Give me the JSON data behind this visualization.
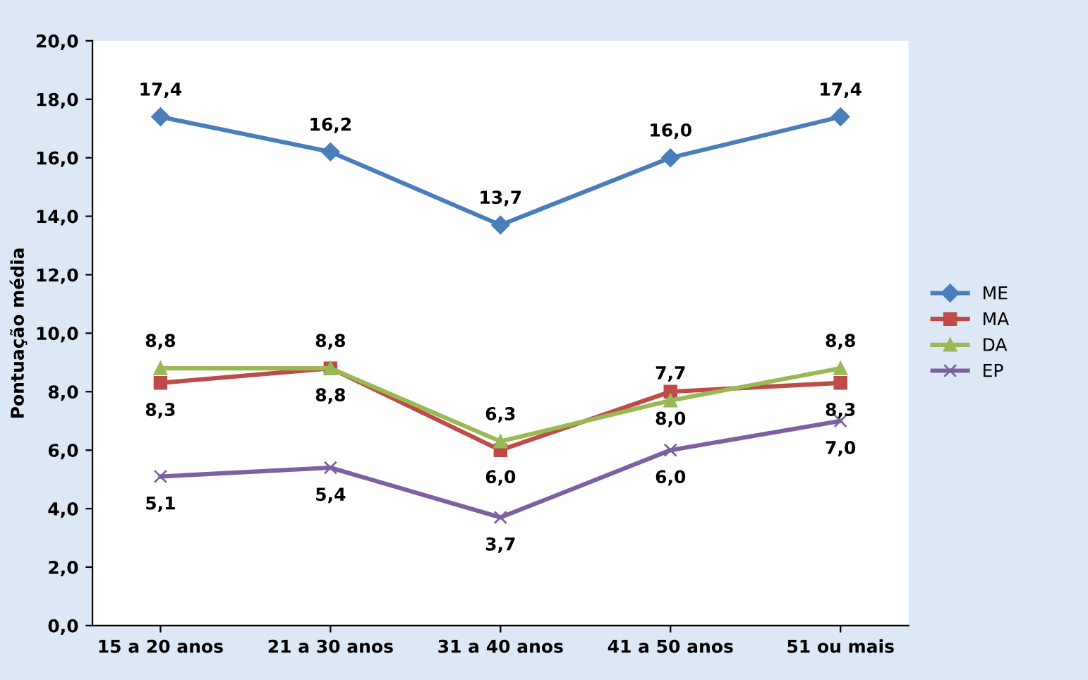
{
  "chart_data": {
    "type": "line",
    "ylabel": "Pontuação média",
    "categories": [
      "15 a 20 anos",
      "21 a 30 anos",
      "31 a 40 anos",
      "41 a 50 anos",
      "51 ou mais"
    ],
    "series": [
      {
        "name": "ME",
        "color": "#4a7ebb",
        "marker": "diamond",
        "values": [
          17.4,
          16.2,
          13.7,
          16.0,
          17.4
        ],
        "value_labels": [
          "17,4",
          "16,2",
          "13,7",
          "16,0",
          "17,4"
        ]
      },
      {
        "name": "MA",
        "color": "#be4b48",
        "marker": "square",
        "values": [
          8.3,
          8.8,
          6.0,
          8.0,
          8.3
        ],
        "value_labels": [
          "8,3",
          "8,8",
          "6,0",
          "8,0",
          "8,3"
        ]
      },
      {
        "name": "DA",
        "color": "#98b954",
        "marker": "triangle",
        "values": [
          8.8,
          8.8,
          6.3,
          7.7,
          8.8
        ],
        "value_labels": [
          "8,8",
          "8,8",
          "6,3",
          "7,7",
          "8,8"
        ]
      },
      {
        "name": "EP",
        "color": "#7d60a0",
        "marker": "cross",
        "values": [
          5.1,
          5.4,
          3.7,
          6.0,
          7.0
        ],
        "value_labels": [
          "5,1",
          "5,4",
          "3,7",
          "6,0",
          "7,0"
        ]
      }
    ],
    "ylim": [
      0,
      20
    ],
    "yticks": [
      {
        "value": 0,
        "label": "0,0"
      },
      {
        "value": 2,
        "label": "2,0"
      },
      {
        "value": 4,
        "label": "4,0"
      },
      {
        "value": 6,
        "label": "6,0"
      },
      {
        "value": 8,
        "label": "8,0"
      },
      {
        "value": 10,
        "label": "10,0"
      },
      {
        "value": 12,
        "label": "12,0"
      },
      {
        "value": 14,
        "label": "14,0"
      },
      {
        "value": 16,
        "label": "16,0"
      },
      {
        "value": 18,
        "label": "18,0"
      },
      {
        "value": 20,
        "label": "20,0"
      }
    ],
    "grid": false,
    "legend": "right",
    "line_style": "solid"
  }
}
